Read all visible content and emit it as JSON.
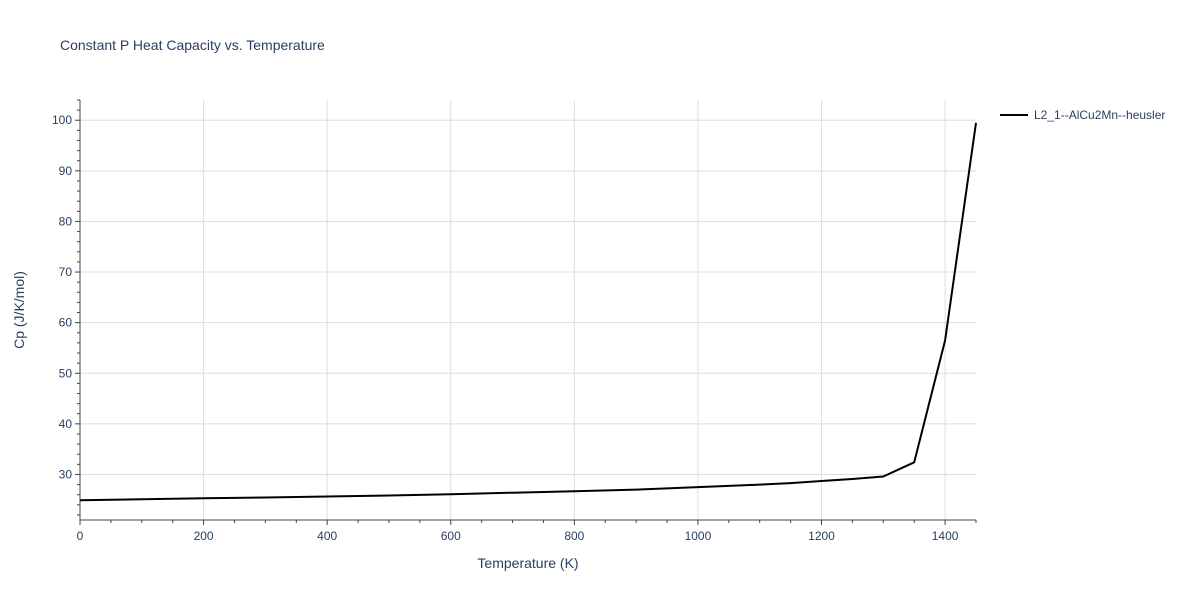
{
  "chart_data": {
    "type": "line",
    "title": "Constant P Heat Capacity vs. Temperature",
    "xlabel": "Temperature (K)",
    "ylabel": "Cp (J/K/mol)",
    "xlim": [
      0,
      1450
    ],
    "ylim": [
      21,
      104
    ],
    "x_ticks": [
      0,
      200,
      400,
      600,
      800,
      1000,
      1200,
      1400
    ],
    "y_ticks": [
      30,
      40,
      50,
      60,
      70,
      80,
      90,
      100
    ],
    "grid": true,
    "legend_position": "top-right",
    "series": [
      {
        "name": "L2_1--AlCu2Mn--heusler",
        "color": "#000000",
        "x": [
          0,
          100,
          200,
          300,
          400,
          500,
          600,
          700,
          800,
          900,
          1000,
          1100,
          1150,
          1200,
          1250,
          1300,
          1350,
          1400,
          1450
        ],
        "y": [
          24.9,
          25.1,
          25.3,
          25.45,
          25.65,
          25.85,
          26.1,
          26.4,
          26.7,
          27.0,
          27.5,
          28.0,
          28.3,
          28.7,
          29.1,
          29.6,
          32.4,
          56.5,
          99.5
        ]
      }
    ]
  }
}
